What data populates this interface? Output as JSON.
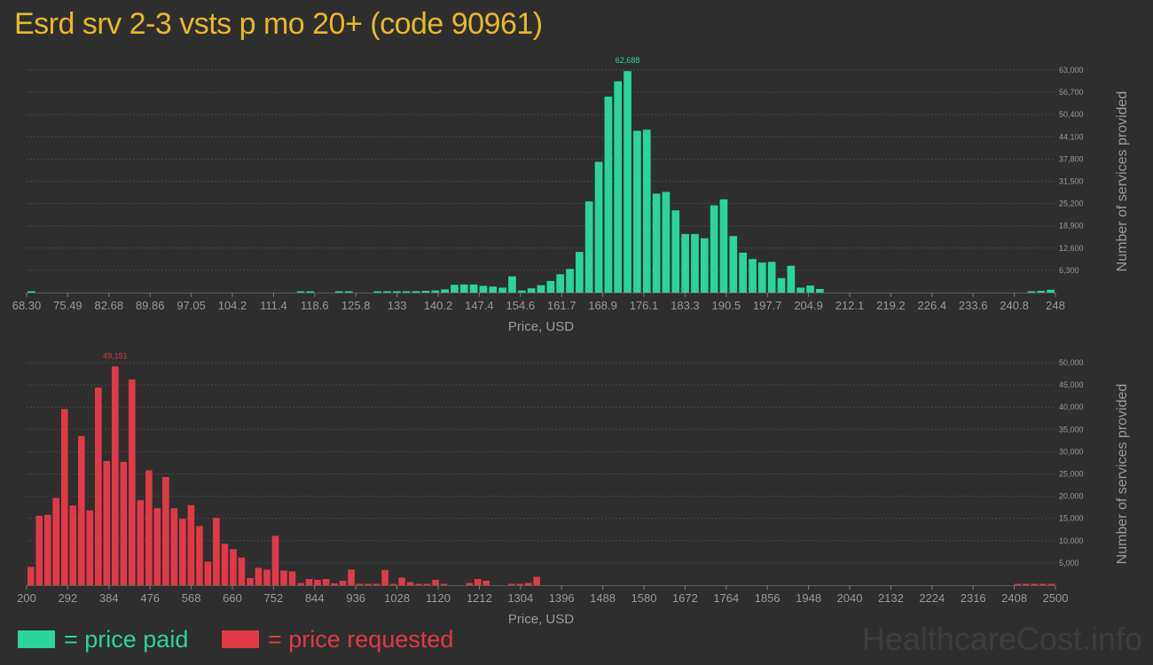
{
  "title": "Esrd srv 2-3 vsts p mo 20+ (code 90961)",
  "legend": {
    "paid": "= price paid",
    "requested": "= price requested"
  },
  "watermark": "HealthcareCost.info",
  "colors": {
    "paid": "#2bd49c",
    "requested": "#e03a48",
    "title": "#e8b829",
    "background": "#2e2e2e",
    "tick": "#9a9a9a",
    "grid": "#4a4a4a"
  },
  "chart_data": [
    {
      "type": "bar",
      "name": "price paid",
      "xlabel": "Price, USD",
      "ylabel": "Number of services provided",
      "x_ticks": [
        "68.30",
        "75.49",
        "82.68",
        "89.86",
        "97.05",
        "104.2",
        "111.4",
        "118.6",
        "125.8",
        "133",
        "140.2",
        "147.4",
        "154.6",
        "161.7",
        "168.9",
        "176.1",
        "183.3",
        "190.5",
        "197.7",
        "204.9",
        "212.1",
        "219.2",
        "226.4",
        "233.6",
        "240.8",
        "248"
      ],
      "y_ticks": [
        "6,300",
        "12,600",
        "18,900",
        "25,200",
        "31,500",
        "37,800",
        "44,100",
        "50,400",
        "56,700",
        "63,000"
      ],
      "ylim": [
        0,
        63000
      ],
      "peak_label": "62,688",
      "values": [
        400,
        0,
        0,
        0,
        0,
        0,
        0,
        0,
        0,
        0,
        0,
        0,
        0,
        0,
        0,
        0,
        0,
        0,
        0,
        0,
        0,
        0,
        0,
        0,
        0,
        0,
        0,
        0,
        150,
        200,
        0,
        0,
        100,
        80,
        0,
        0,
        250,
        300,
        300,
        300,
        400,
        500,
        600,
        900,
        2200,
        2300,
        2300,
        1900,
        1700,
        1400,
        4600,
        600,
        1200,
        2100,
        3300,
        5200,
        6700,
        11500,
        25800,
        37000,
        55500,
        59800,
        62688,
        45800,
        46100,
        28000,
        28500,
        23300,
        16600,
        16600,
        15400,
        24700,
        26400,
        16000,
        11300,
        9500,
        8500,
        8700,
        4100,
        7600,
        1400,
        2000,
        1000,
        0,
        0,
        0,
        0,
        0,
        0,
        0,
        0,
        0,
        0,
        0,
        0,
        0,
        0,
        0,
        0,
        0,
        0,
        0,
        0,
        0,
        200,
        500,
        800
      ]
    },
    {
      "type": "bar",
      "name": "price requested",
      "xlabel": "Price, USD",
      "ylabel": "Number of services provided",
      "x_ticks": [
        "200",
        "292",
        "384",
        "476",
        "568",
        "660",
        "752",
        "844",
        "936",
        "1028",
        "1120",
        "1212",
        "1304",
        "1396",
        "1488",
        "1580",
        "1672",
        "1764",
        "1856",
        "1948",
        "2040",
        "2132",
        "2224",
        "2316",
        "2408",
        "2500"
      ],
      "y_ticks": [
        "5,000",
        "10,000",
        "15,000",
        "20,000",
        "25,000",
        "30,000",
        "35,000",
        "40,000",
        "45,000",
        "50,000"
      ],
      "ylim": [
        0,
        50000
      ],
      "peak_label": "49,151",
      "values": [
        4100,
        15600,
        15800,
        19600,
        39600,
        17900,
        33500,
        16800,
        44400,
        27900,
        49151,
        27700,
        46200,
        19100,
        25800,
        17300,
        24300,
        17300,
        14900,
        18000,
        13300,
        5300,
        15100,
        9300,
        8100,
        6200,
        1600,
        3900,
        3500,
        11100,
        3300,
        3100,
        500,
        1400,
        1200,
        1400,
        400,
        1000,
        3500,
        300,
        300,
        300,
        3400,
        300,
        1700,
        700,
        300,
        100,
        1200,
        100,
        0,
        0,
        500,
        1400,
        1000,
        0,
        0,
        300,
        100,
        500,
        1900,
        0,
        0,
        0,
        0,
        0,
        0,
        0,
        0,
        0,
        0,
        0,
        0,
        0,
        0,
        0,
        0,
        0,
        0,
        0,
        0,
        0,
        0,
        0,
        0,
        0,
        0,
        0,
        0,
        0,
        0,
        0,
        0,
        0,
        0,
        0,
        0,
        0,
        0,
        0,
        0,
        0,
        0,
        0,
        0,
        0,
        0,
        0,
        0,
        0,
        0,
        0,
        0,
        0,
        0,
        0,
        0,
        200,
        200,
        200,
        200,
        200
      ]
    }
  ]
}
